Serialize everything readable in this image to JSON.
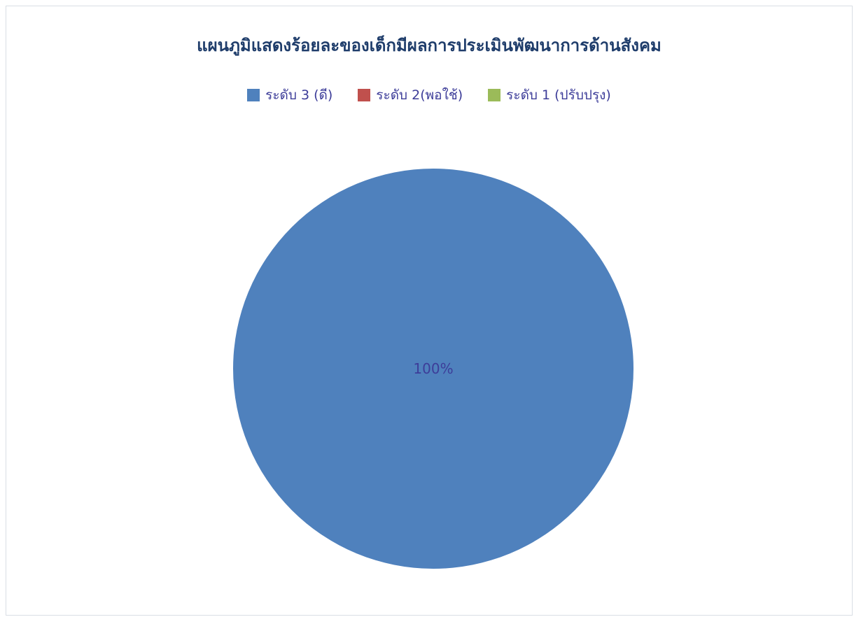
{
  "chart_data": {
    "type": "pie",
    "title": "แผนภูมิแสดงร้อยละของเด็กมีผลการประเมินพัฒนาการด้านสังคม",
    "categories": [
      "ระดับ 3 (ดี)",
      "ระดับ 2(พอใช้)",
      "ระดับ 1 (ปรับปรุง)"
    ],
    "values": [
      100,
      0,
      0
    ],
    "data_labels": [
      "100%",
      "",
      ""
    ],
    "colors": [
      "#4f81bd",
      "#c0504d",
      "#9bbb59"
    ],
    "legend_position": "top"
  }
}
